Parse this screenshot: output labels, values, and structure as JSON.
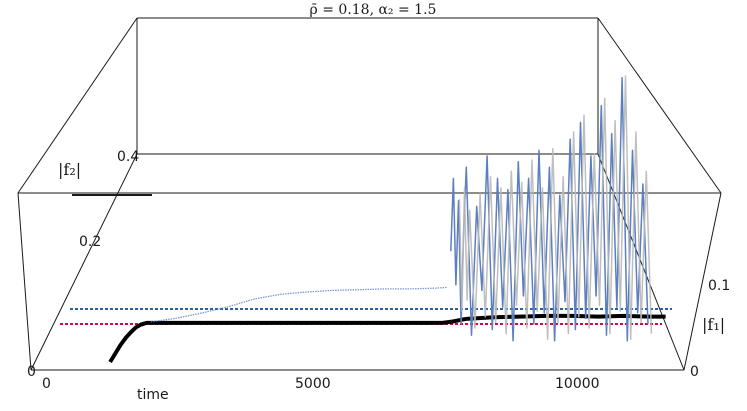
{
  "chart_data": {
    "type": "line",
    "title": "ρ̄ = 0.18, α₂ = 1.5",
    "xlabel": "time",
    "zlabel": "|f₂|",
    "ylabel": "|f₁|",
    "x_ticks": [
      "0",
      "5000",
      "10000"
    ],
    "z_ticks": [
      "0",
      "0.2",
      "0.4"
    ],
    "y_ticks": [
      "0",
      "0.1"
    ],
    "xlim": [
      0,
      12000
    ],
    "zlim": [
      0,
      0.4
    ],
    "colors": {
      "f1_ref": "#2b5fa0",
      "f2_ref": "#e0004d",
      "main": "#000000",
      "f1_noisy": "#5b7fc0",
      "f2_noisy": "#b8b8b8",
      "frame": "#1a1a1a"
    },
    "reference_lines": [
      {
        "axis": "f1",
        "value": 0.06
      },
      {
        "axis": "f2",
        "value": 0.055
      }
    ],
    "series": [
      {
        "kind": "main",
        "x": [
          1100,
          1200,
          1300,
          1400,
          1500,
          1600,
          1700,
          1800,
          2000,
          3000,
          4000,
          5000,
          6000,
          7000,
          7500,
          7700,
          7900,
          8000,
          8500,
          9000,
          9500,
          10000,
          10500,
          11000,
          11500,
          11800
        ],
        "values": [
          0.0,
          0.012,
          0.024,
          0.034,
          0.042,
          0.049,
          0.053,
          0.055,
          0.055,
          0.055,
          0.055,
          0.055,
          0.055,
          0.055,
          0.055,
          0.057,
          0.06,
          0.061,
          0.063,
          0.064,
          0.065,
          0.065,
          0.064,
          0.065,
          0.064,
          0.064
        ]
      },
      {
        "kind": "f1_transient",
        "x": [
          2000,
          2500,
          3000,
          3500,
          4000,
          4500,
          5000,
          5500,
          6000,
          6500,
          7000,
          7500,
          7700
        ],
        "values": [
          0.0,
          0.005,
          0.012,
          0.02,
          0.03,
          0.036,
          0.039,
          0.041,
          0.042,
          0.043,
          0.043,
          0.044,
          0.045
        ]
      },
      {
        "kind": "f1_noisy",
        "x": [
          7700,
          7750,
          7800,
          7850,
          7900,
          7950,
          8000,
          8100,
          8200,
          8300,
          8400,
          8500,
          8600,
          8700,
          8800,
          8900,
          9000,
          9100,
          9200,
          9300,
          9400,
          9500,
          9600,
          9700,
          9800,
          9900,
          10000,
          10100,
          10200,
          10300,
          10400,
          10500,
          10600,
          10700,
          10800,
          10900,
          11000,
          11100,
          11200,
          11300,
          11400,
          11500
        ],
        "values": [
          0.18,
          0.31,
          0.12,
          0.27,
          0.05,
          0.22,
          0.33,
          0.03,
          0.26,
          0.11,
          0.35,
          0.04,
          0.31,
          0.08,
          0.29,
          0.02,
          0.34,
          0.1,
          0.31,
          0.05,
          0.36,
          0.07,
          0.33,
          0.02,
          0.28,
          0.09,
          0.38,
          0.04,
          0.41,
          0.06,
          0.35,
          0.1,
          0.44,
          0.03,
          0.39,
          0.08,
          0.49,
          0.02,
          0.36,
          0.07,
          0.3,
          0.05
        ]
      },
      {
        "kind": "f2_noisy",
        "x": [
          7750,
          7800,
          7850,
          7900,
          7950,
          8050,
          8150,
          8250,
          8350,
          8450,
          8550,
          8650,
          8750,
          8850,
          8950,
          9050,
          9150,
          9250,
          9350,
          9450,
          9550,
          9650,
          9750,
          9850,
          9950,
          10050,
          10150,
          10250,
          10350,
          10450,
          10550,
          10650,
          10750,
          10850,
          10950,
          11050,
          11150,
          11250,
          11350,
          11450
        ],
        "values": [
          0.28,
          0.08,
          0.3,
          0.1,
          0.26,
          0.05,
          0.29,
          0.07,
          0.32,
          0.06,
          0.3,
          0.04,
          0.33,
          0.09,
          0.31,
          0.05,
          0.35,
          0.08,
          0.3,
          0.03,
          0.37,
          0.06,
          0.32,
          0.04,
          0.4,
          0.07,
          0.43,
          0.05,
          0.36,
          0.09,
          0.46,
          0.04,
          0.42,
          0.08,
          0.5,
          0.03,
          0.4,
          0.06,
          0.33,
          0.04
        ]
      }
    ]
  }
}
